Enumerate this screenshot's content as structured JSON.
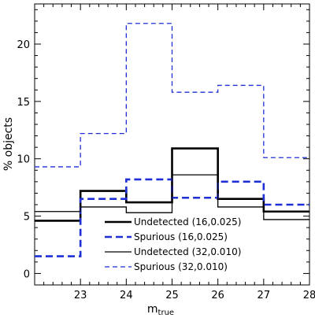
{
  "chart_data": {
    "type": "line",
    "step": true,
    "title": "",
    "xlabel": "m",
    "xlabel_sub": "true",
    "ylabel": "% objects",
    "xlim": [
      22,
      28
    ],
    "ylim": [
      -1,
      23.5
    ],
    "x_ticks": [
      23,
      24,
      25,
      26,
      27,
      28
    ],
    "y_ticks": [
      0,
      5,
      10,
      15,
      20
    ],
    "x_tick_labels": [
      "23",
      "24",
      "25",
      "26",
      "27",
      "28"
    ],
    "y_tick_labels": [
      "0",
      "5",
      "10",
      "15",
      "20"
    ],
    "bin_edges": [
      22,
      23,
      24,
      25,
      26,
      27,
      28
    ],
    "legend_position": "bottom-center",
    "grid": false,
    "series": [
      {
        "name": "Undetected (16,0.025)",
        "color": "#000000",
        "style": "solid",
        "weight": "thick",
        "values": [
          4.6,
          7.2,
          6.2,
          10.9,
          6.5,
          5.4
        ]
      },
      {
        "name": "Spurious (16,0.025)",
        "color": "#1f2fd6",
        "style": "dashed",
        "weight": "thick",
        "values": [
          1.5,
          6.5,
          8.2,
          6.6,
          8.0,
          6.0
        ]
      },
      {
        "name": "Undetected (32,0.010)",
        "color": "#000000",
        "style": "solid",
        "weight": "thin",
        "values": [
          5.4,
          5.8,
          5.3,
          8.6,
          5.8,
          4.7
        ]
      },
      {
        "name": "Spurious (32,0.010)",
        "color": "#1f2fd6",
        "style": "dashed",
        "weight": "thin",
        "values": [
          9.3,
          12.2,
          21.8,
          15.8,
          16.4,
          10.1
        ]
      }
    ]
  }
}
